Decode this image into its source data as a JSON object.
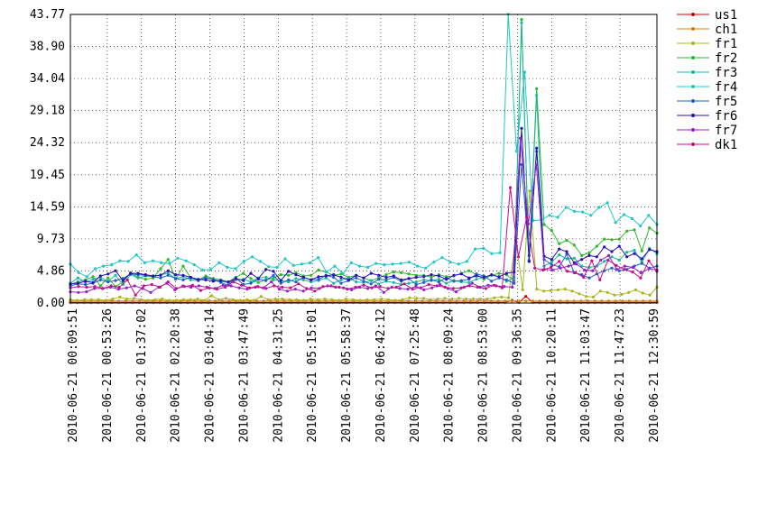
{
  "chart_data": {
    "type": "line",
    "y_ticks": [
      "0.00",
      "4.86",
      "9.73",
      "14.59",
      "19.45",
      "24.32",
      "29.18",
      "34.04",
      "38.90",
      "43.77"
    ],
    "ylim": [
      0,
      43.77
    ],
    "x_tick_labels": [
      "2010-06-21 00:09:51",
      "2010-06-21 00:53:26",
      "2010-06-21 01:37:02",
      "2010-06-21 02:20:38",
      "2010-06-21 03:04:14",
      "2010-06-21 03:47:49",
      "2010-06-21 04:31:25",
      "2010-06-21 05:15:01",
      "2010-06-21 05:58:37",
      "2010-06-21 06:42:12",
      "2010-06-21 07:25:48",
      "2010-06-21 08:09:24",
      "2010-06-21 08:53:00",
      "2010-06-21 09:36:35",
      "2010-06-21 10:20:11",
      "2010-06-21 11:03:47",
      "2010-06-21 11:47:23",
      "2010-06-21 12:30:59"
    ],
    "grid": true,
    "legend_position": "right",
    "series": [
      {
        "name": "us1",
        "color": "#cc0000",
        "values": [
          0.1,
          0.1,
          0.1,
          0.1,
          0.1,
          0.1,
          0.1,
          0.1,
          0.1,
          0.1,
          0.1,
          0.1,
          0.1,
          0.1,
          0.1,
          0.1,
          0.1,
          0.1,
          0.1,
          0.1,
          0.1,
          0.1,
          0.1,
          0.1,
          0.1,
          0.1,
          0.1,
          0.1,
          0.1,
          0.1,
          0.1,
          0.1,
          0.1,
          0.1,
          0.1,
          0.1,
          0.1,
          0.1,
          0.1,
          0.1,
          0.1,
          0.1,
          0.1,
          0.1,
          0.1,
          0.1,
          0.1,
          0.1,
          0.1,
          0.1,
          0.1,
          0.1,
          0.1,
          0.1,
          0.1,
          0.1,
          0.1,
          0.1,
          0.1,
          0.1,
          0.1,
          0.1,
          0.1,
          0.1,
          0.4,
          0.1,
          1.0,
          0.1,
          0.1,
          0.1,
          0.1,
          0.1,
          0.1,
          0.1,
          0.1,
          0.1,
          0.1,
          0.1,
          0.1,
          0.1,
          0.1,
          0.1,
          0.1,
          0.1,
          0.1,
          0.1
        ]
      },
      {
        "name": "ch1",
        "color": "#d4820a",
        "values": [
          0.3,
          0.3,
          0.3,
          0.3,
          0.3,
          0.3,
          0.3,
          0.3,
          0.3,
          0.3,
          0.3,
          0.3,
          0.3,
          0.3,
          0.3,
          0.3,
          0.3,
          0.3,
          0.3,
          0.3,
          0.3,
          0.3,
          0.3,
          0.3,
          0.3,
          0.3,
          0.3,
          0.3,
          0.3,
          0.3,
          0.3,
          0.3,
          0.3,
          0.3,
          0.3,
          0.3,
          0.3,
          0.3,
          0.3,
          0.3,
          0.3,
          0.3,
          0.3,
          0.3,
          0.3,
          0.3,
          0.3,
          0.3,
          0.3,
          0.3,
          0.3,
          0.3,
          0.3,
          0.3,
          0.3,
          0.3,
          0.3,
          0.3,
          0.3,
          0.3,
          0.3,
          0.3,
          0.3,
          0.3,
          0.3,
          0.3,
          0.3,
          0.3,
          0.3,
          0.3,
          0.3,
          0.3,
          0.3,
          0.3,
          0.3,
          0.3,
          0.3,
          0.3,
          0.3,
          0.3,
          0.3,
          0.3,
          0.3,
          0.3,
          0.3,
          0.3
        ]
      },
      {
        "name": "fr1",
        "color": "#a8b81a",
        "values": [
          0.5,
          0.4,
          0.5,
          0.5,
          0.5,
          0.4,
          0.6,
          0.9,
          0.6,
          0.7,
          0.5,
          0.4,
          0.5,
          0.6,
          0.4,
          0.4,
          0.5,
          0.5,
          0.6,
          0.4,
          1.1,
          0.5,
          0.7,
          0.5,
          0.4,
          0.5,
          0.4,
          1.0,
          0.5,
          0.6,
          0.6,
          0.5,
          0.5,
          0.4,
          0.6,
          0.5,
          0.6,
          0.5,
          0.4,
          0.6,
          0.5,
          0.4,
          0.5,
          0.5,
          0.6,
          0.5,
          0.4,
          0.5,
          0.8,
          0.7,
          0.7,
          0.5,
          0.6,
          0.7,
          0.6,
          0.7,
          0.6,
          0.6,
          0.6,
          0.6,
          0.8,
          0.9,
          0.8,
          10.0,
          2.0,
          17.0,
          2.1,
          1.8,
          1.9,
          2.0,
          2.1,
          1.8,
          1.4,
          1.0,
          0.9,
          1.8,
          1.6,
          1.2,
          1.3,
          1.6,
          2.0,
          1.5,
          1.2,
          2.4
        ]
      },
      {
        "name": "fr2",
        "color": "#2fb82f",
        "values": [
          2.8,
          3.2,
          3.5,
          4.0,
          2.6,
          3.8,
          2.5,
          3.2,
          4.6,
          3.9,
          3.6,
          3.8,
          5.2,
          6.6,
          3.6,
          5.6,
          3.8,
          3.5,
          4.1,
          3.7,
          3.5,
          3.2,
          3.9,
          4.5,
          3.7,
          3.1,
          3.5,
          3.8,
          4.3,
          4.2,
          4.6,
          4.1,
          4.2,
          5.0,
          4.7,
          4.2,
          4.4,
          3.9,
          4.2,
          3.8,
          3.4,
          3.8,
          4.3,
          4.7,
          4.6,
          4.4,
          4.2,
          4.2,
          3.9,
          4.3,
          4.0,
          4.1,
          4.5,
          4.9,
          4.3,
          3.6,
          4.2,
          4.5,
          4.3,
          3.4,
          43.0,
          6.3,
          32.5,
          11.9,
          11.0,
          9.0,
          9.5,
          8.8,
          7.2,
          7.6,
          8.6,
          9.7,
          9.6,
          9.7,
          10.9,
          11.1,
          7.9,
          11.4,
          10.6
        ]
      },
      {
        "name": "fr3",
        "color": "#1ab89e",
        "values": [
          3.0,
          3.8,
          3.2,
          3.6,
          3.9,
          3.3,
          4.2,
          2.8,
          4.3,
          3.8,
          4.1,
          4.0,
          4.3,
          4.5,
          3.7,
          4.0,
          3.5,
          3.4,
          3.9,
          3.5,
          3.3,
          3.1,
          3.5,
          3.6,
          3.2,
          3.8,
          3.9,
          3.5,
          3.4,
          3.2,
          3.7,
          3.5,
          3.2,
          3.4,
          3.8,
          3.0,
          3.5,
          3.8,
          3.2,
          3.1,
          3.4,
          2.9,
          3.3,
          3.1,
          2.8,
          3.0,
          3.2,
          3.5,
          3.4,
          3.6,
          3.0,
          3.4,
          3.2,
          3.1,
          3.6,
          3.9,
          4.2,
          4.0,
          3.3,
          3.9,
          42.5,
          6.5,
          31.5,
          5.6,
          6.2,
          7.3,
          6.7,
          6.8,
          5.6,
          5.4,
          5.6,
          6.3,
          7.0,
          6.5,
          7.7,
          8.0,
          6.2,
          8.3,
          7.5
        ]
      },
      {
        "name": "fr4",
        "color": "#1fc8c8",
        "values": [
          5.9,
          4.6,
          4.0,
          5.2,
          5.6,
          5.8,
          6.4,
          6.3,
          7.3,
          6.1,
          6.4,
          6.1,
          6.0,
          6.8,
          6.4,
          5.8,
          5.0,
          5.1,
          6.1,
          5.4,
          5.2,
          6.3,
          7.0,
          6.3,
          5.5,
          5.4,
          6.7,
          5.7,
          5.9,
          6.1,
          6.9,
          4.7,
          5.6,
          4.5,
          6.1,
          5.6,
          5.4,
          6.0,
          5.8,
          5.9,
          6.0,
          6.2,
          5.6,
          5.3,
          6.2,
          6.9,
          6.2,
          5.9,
          6.3,
          8.2,
          8.3,
          7.5,
          7.6,
          43.8,
          23.0,
          35.0,
          12.5,
          12.6,
          13.3,
          13.0,
          14.5,
          13.9,
          13.8,
          13.3,
          14.5,
          15.2,
          12.2,
          13.4,
          12.8,
          11.7,
          13.3,
          11.9
        ]
      },
      {
        "name": "fr5",
        "color": "#1f5fcc",
        "values": [
          2.6,
          2.9,
          2.8,
          3.0,
          3.5,
          3.2,
          3.4,
          3.7,
          4.4,
          4.3,
          4.2,
          4.0,
          3.8,
          4.2,
          3.7,
          3.5,
          3.9,
          3.4,
          3.8,
          3.6,
          3.1,
          2.7,
          3.8,
          2.8,
          3.0,
          3.6,
          3.4,
          4.2,
          3.0,
          3.5,
          3.2,
          3.9,
          3.5,
          3.6,
          4.2,
          3.9,
          3.0,
          3.4,
          3.8,
          3.3,
          2.9,
          3.6,
          3.5,
          3.9,
          3.3,
          3.7,
          2.8,
          3.1,
          3.5,
          3.2,
          3.8,
          3.3,
          3.4,
          3.6,
          4.4,
          4.1,
          3.3,
          3.8,
          3.5,
          3.0,
          21.0,
          7.2,
          23.0,
          6.6,
          5.8,
          5.5,
          7.4,
          4.6,
          4.3,
          3.8,
          4.4,
          4.9,
          5.3,
          4.9,
          5.1,
          5.6,
          6.0,
          5.3,
          5.6
        ]
      },
      {
        "name": "fr6",
        "color": "#2a10b8",
        "values": [
          2.9,
          3.0,
          3.3,
          3.1,
          4.1,
          4.4,
          4.9,
          3.4,
          4.5,
          4.5,
          4.3,
          4.1,
          4.2,
          4.9,
          4.3,
          4.2,
          3.9,
          3.6,
          3.5,
          3.3,
          3.4,
          3.2,
          3.7,
          3.4,
          4.5,
          3.7,
          5.1,
          4.8,
          3.4,
          4.8,
          4.3,
          3.9,
          3.5,
          4.0,
          4.1,
          4.3,
          3.9,
          3.5,
          4.2,
          3.8,
          4.5,
          4.2,
          3.9,
          4.1,
          3.5,
          3.7,
          3.9,
          4.0,
          4.3,
          4.1,
          3.6,
          4.2,
          4.4,
          3.8,
          4.1,
          3.9,
          4.3,
          4.0,
          4.5,
          4.7,
          26.5,
          6.3,
          23.5,
          7.1,
          6.6,
          8.2,
          7.8,
          6.1,
          6.6,
          7.2,
          7.0,
          8.5,
          7.8,
          8.6,
          7.0,
          7.5,
          6.7,
          8.1,
          7.8
        ]
      },
      {
        "name": "fr7",
        "color": "#9a1fcc",
        "values": [
          1.7,
          1.6,
          1.7,
          2.2,
          2.2,
          2.4,
          2.1,
          2.3,
          2.6,
          2.2,
          1.6,
          2.4,
          3.0,
          2.0,
          2.6,
          2.4,
          2.6,
          2.4,
          2.2,
          2.7,
          2.6,
          2.3,
          2.1,
          2.4,
          2.3,
          3.2,
          2.1,
          1.8,
          2.1,
          1.8,
          2.3,
          2.2,
          2.6,
          2.4,
          2.3,
          2.0,
          2.4,
          2.2,
          2.6,
          1.6,
          2.4,
          2.2,
          2.1,
          2.5,
          2.0,
          2.3,
          2.8,
          2.2,
          1.7,
          2.4,
          3.0,
          2.4,
          2.7,
          2.6,
          2.5,
          2.4,
          25.0,
          12.0,
          21.0,
          5.1,
          5.0,
          5.3,
          5.6,
          5.9,
          5.0,
          4.9,
          6.5,
          7.2,
          5.1,
          5.6,
          5.4,
          4.6,
          5.2,
          5.0
        ]
      },
      {
        "name": "dk1",
        "color": "#c8108a",
        "values": [
          2.3,
          2.5,
          2.4,
          2.5,
          2.2,
          2.6,
          2.4,
          3.5,
          1.2,
          2.6,
          2.8,
          2.4,
          3.2,
          2.2,
          2.5,
          2.7,
          1.9,
          2.3,
          2.1,
          2.4,
          3.2,
          2.7,
          2.3,
          2.5,
          2.2,
          2.6,
          2.4,
          2.3,
          2.9,
          2.2,
          1.8,
          2.5,
          2.6,
          2.4,
          2.1,
          2.4,
          2.7,
          2.3,
          2.5,
          2.2,
          2.4,
          2.9,
          2.1,
          2.3,
          2.8,
          2.6,
          2.4,
          2.2,
          2.3,
          2.6,
          2.4,
          2.2,
          2.7,
          2.3,
          17.5,
          7.0,
          13.0,
          5.3,
          5.0,
          5.4,
          6.3,
          4.8,
          4.6,
          3.9,
          6.4,
          3.5,
          6.5,
          5.7,
          5.1,
          4.7,
          3.8,
          6.4,
          4.8
        ]
      }
    ]
  }
}
